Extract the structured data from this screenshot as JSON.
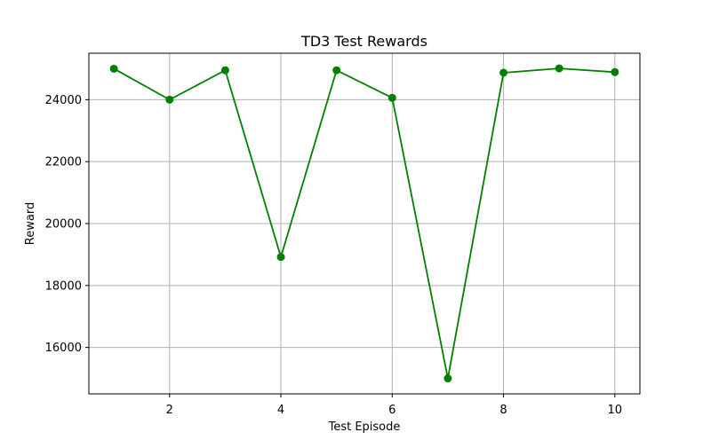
{
  "chart_data": {
    "type": "line",
    "title": "TD3 Test Rewards",
    "xlabel": "Test Episode",
    "ylabel": "Reward",
    "x": [
      1,
      2,
      3,
      4,
      5,
      6,
      7,
      8,
      9,
      10
    ],
    "series": [
      {
        "values": [
          25000,
          24000,
          24950,
          18920,
          24950,
          24060,
          15000,
          24870,
          25010,
          24890
        ],
        "color": "#008000",
        "marker": "circle"
      }
    ],
    "xticks": [
      2,
      4,
      6,
      8,
      10
    ],
    "xtick_labels": [
      "2",
      "4",
      "6",
      "8",
      "10"
    ],
    "yticks": [
      16000,
      18000,
      20000,
      22000,
      24000
    ],
    "ytick_labels": [
      "16000",
      "18000",
      "20000",
      "22000",
      "24000"
    ],
    "xlim": [
      0.55,
      10.45
    ],
    "ylim": [
      14500,
      25500
    ],
    "grid": true,
    "grid_color": "#b0b0b0",
    "legend": false
  }
}
